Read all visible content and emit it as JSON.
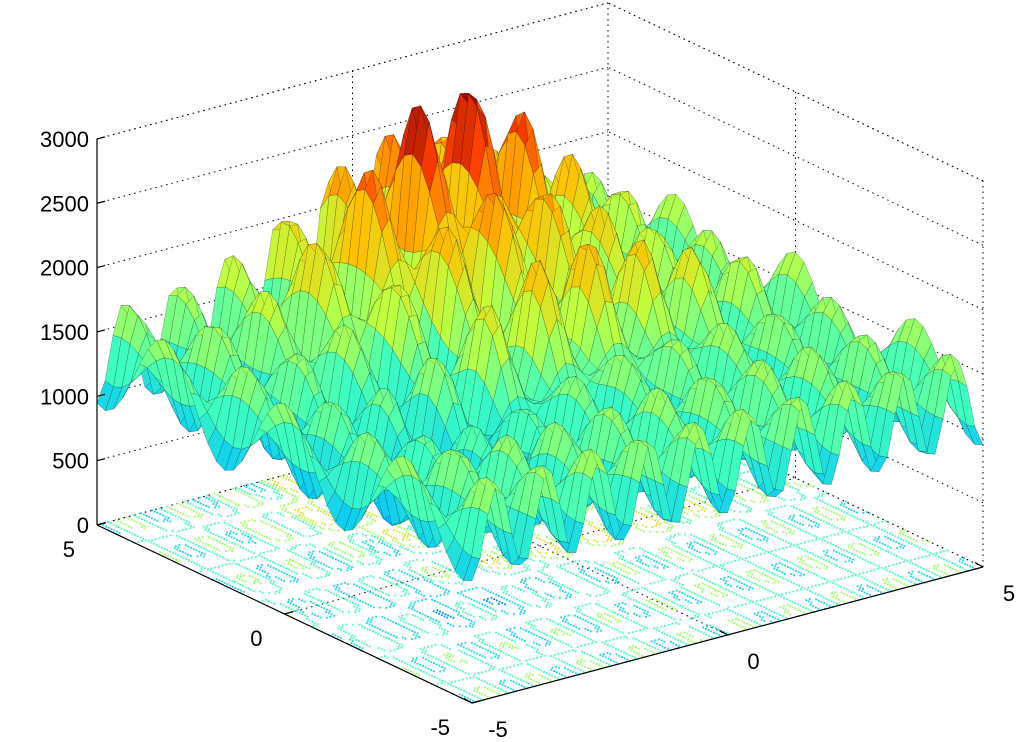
{
  "chart_data": {
    "type": "surface",
    "title": "",
    "xlabel": "",
    "ylabel": "",
    "zlabel": "",
    "xlim": [
      -5,
      5
    ],
    "ylim": [
      -5,
      5
    ],
    "zlim": [
      0,
      3000
    ],
    "grid": true,
    "colormap": "jet",
    "colormap_colors": [
      "#00008f",
      "#0040ff",
      "#00c0ff",
      "#40ffbf",
      "#bfff40",
      "#ffc000",
      "#ff4000",
      "#800000"
    ],
    "x_ticks": [
      "-5",
      "0",
      "5"
    ],
    "y_ticks": [
      "-5",
      "0",
      "5"
    ],
    "z_ticks": [
      "0",
      "500",
      "1000",
      "1500",
      "2000",
      "2500",
      "3000"
    ],
    "surface": {
      "baseline_level": 1300,
      "peak_value": 2980,
      "minimum_value": 250,
      "ripple_period": 1.0,
      "note_ridge_at_y": 0
    },
    "contour_base": true
  }
}
